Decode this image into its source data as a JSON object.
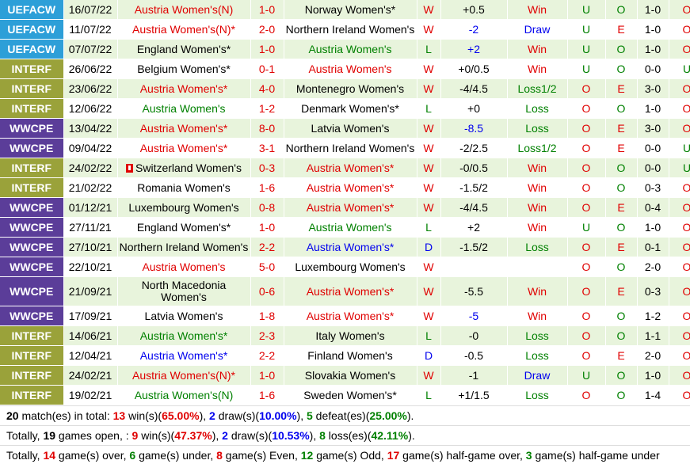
{
  "colors": {
    "uefacw": "#2d9fd8",
    "interf": "#9aa23a",
    "wwcpe": "#5b3d99",
    "row_even": "#e8f4dc",
    "row_odd": "#ffffff"
  },
  "matches": [
    {
      "league": "UEFACW",
      "date": "16/07/22",
      "home": "Austria Women's(N)",
      "home_color": "red",
      "score": "1-0",
      "away": "Norway Women's*",
      "away_color": "dark",
      "wl": "W",
      "handicap": "+0.5",
      "hc_color": "dark",
      "hres": "Win",
      "hres_color": "red",
      "ou": "U",
      "ou_color": "green",
      "oe": "O",
      "oe_color": "green",
      "ht": "1-0",
      "hou": "O",
      "hou_color": "red"
    },
    {
      "league": "UEFACW",
      "date": "11/07/22",
      "home": "Austria Women's(N)*",
      "home_color": "red",
      "score": "2-0",
      "away": "Northern Ireland Women's",
      "away_color": "dark",
      "wl": "W",
      "handicap": "-2",
      "hc_color": "blue",
      "hres": "Draw",
      "hres_color": "blue",
      "ou": "U",
      "ou_color": "green",
      "oe": "E",
      "oe_color": "red",
      "ht": "1-0",
      "hou": "O",
      "hou_color": "red"
    },
    {
      "league": "UEFACW",
      "date": "07/07/22",
      "home": "England Women's*",
      "home_color": "dark",
      "score": "1-0",
      "away": "Austria Women's",
      "away_color": "green",
      "wl": "L",
      "handicap": "+2",
      "hc_color": "blue",
      "hres": "Win",
      "hres_color": "red",
      "ou": "U",
      "ou_color": "green",
      "oe": "O",
      "oe_color": "green",
      "ht": "1-0",
      "hou": "O",
      "hou_color": "red"
    },
    {
      "league": "INTERF",
      "date": "26/06/22",
      "home": "Belgium Women's*",
      "home_color": "dark",
      "score": "0-1",
      "away": "Austria Women's",
      "away_color": "red",
      "wl": "W",
      "handicap": "+0/0.5",
      "hc_color": "dark",
      "hres": "Win",
      "hres_color": "red",
      "ou": "U",
      "ou_color": "green",
      "oe": "O",
      "oe_color": "green",
      "ht": "0-0",
      "hou": "U",
      "hou_color": "green"
    },
    {
      "league": "INTERF",
      "date": "23/06/22",
      "home": "Austria Women's*",
      "home_color": "red",
      "score": "4-0",
      "away": "Montenegro Women's",
      "away_color": "dark",
      "wl": "W",
      "handicap": "-4/4.5",
      "hc_color": "dark",
      "hres": "Loss1/2",
      "hres_color": "green",
      "ou": "O",
      "ou_color": "red",
      "oe": "E",
      "oe_color": "red",
      "ht": "3-0",
      "hou": "O",
      "hou_color": "red"
    },
    {
      "league": "INTERF",
      "date": "12/06/22",
      "home": "Austria Women's",
      "home_color": "green",
      "score": "1-2",
      "away": "Denmark Women's*",
      "away_color": "dark",
      "wl": "L",
      "handicap": "+0",
      "hc_color": "dark",
      "hres": "Loss",
      "hres_color": "green",
      "ou": "O",
      "ou_color": "red",
      "oe": "O",
      "oe_color": "green",
      "ht": "1-0",
      "hou": "O",
      "hou_color": "red"
    },
    {
      "league": "WWCPE",
      "date": "13/04/22",
      "home": "Austria Women's*",
      "home_color": "red",
      "score": "8-0",
      "away": "Latvia Women's",
      "away_color": "dark",
      "wl": "W",
      "handicap": "-8.5",
      "hc_color": "blue",
      "hres": "Loss",
      "hres_color": "green",
      "ou": "O",
      "ou_color": "red",
      "oe": "E",
      "oe_color": "red",
      "ht": "3-0",
      "hou": "O",
      "hou_color": "red"
    },
    {
      "league": "WWCPE",
      "date": "09/04/22",
      "home": "Austria Women's*",
      "home_color": "red",
      "score": "3-1",
      "away": "Northern Ireland Women's",
      "away_color": "dark",
      "wl": "W",
      "handicap": "-2/2.5",
      "hc_color": "dark",
      "hres": "Loss1/2",
      "hres_color": "green",
      "ou": "O",
      "ou_color": "red",
      "oe": "E",
      "oe_color": "red",
      "ht": "0-0",
      "hou": "U",
      "hou_color": "green"
    },
    {
      "league": "INTERF",
      "date": "24/02/22",
      "home": "Switzerland Women's",
      "home_color": "dark",
      "home_flag": true,
      "score": "0-3",
      "away": "Austria Women's*",
      "away_color": "red",
      "wl": "W",
      "handicap": "-0/0.5",
      "hc_color": "dark",
      "hres": "Win",
      "hres_color": "red",
      "ou": "O",
      "ou_color": "red",
      "oe": "O",
      "oe_color": "green",
      "ht": "0-0",
      "hou": "U",
      "hou_color": "green"
    },
    {
      "league": "INTERF",
      "date": "21/02/22",
      "home": "Romania Women's",
      "home_color": "dark",
      "score": "1-6",
      "away": "Austria Women's*",
      "away_color": "red",
      "wl": "W",
      "handicap": "-1.5/2",
      "hc_color": "dark",
      "hres": "Win",
      "hres_color": "red",
      "ou": "O",
      "ou_color": "red",
      "oe": "O",
      "oe_color": "green",
      "ht": "0-3",
      "hou": "O",
      "hou_color": "red"
    },
    {
      "league": "WWCPE",
      "date": "01/12/21",
      "home": "Luxembourg Women's",
      "home_color": "dark",
      "score": "0-8",
      "away": "Austria Women's*",
      "away_color": "red",
      "wl": "W",
      "handicap": "-4/4.5",
      "hc_color": "dark",
      "hres": "Win",
      "hres_color": "red",
      "ou": "O",
      "ou_color": "red",
      "oe": "E",
      "oe_color": "red",
      "ht": "0-4",
      "hou": "O",
      "hou_color": "red"
    },
    {
      "league": "WWCPE",
      "date": "27/11/21",
      "home": "England Women's*",
      "home_color": "dark",
      "score": "1-0",
      "away": "Austria Women's",
      "away_color": "green",
      "wl": "L",
      "handicap": "+2",
      "hc_color": "dark",
      "hres": "Win",
      "hres_color": "red",
      "ou": "U",
      "ou_color": "green",
      "oe": "O",
      "oe_color": "green",
      "ht": "1-0",
      "hou": "O",
      "hou_color": "red"
    },
    {
      "league": "WWCPE",
      "date": "27/10/21",
      "home": "Northern Ireland Women's",
      "home_color": "dark",
      "score": "2-2",
      "away": "Austria Women's*",
      "away_color": "blue",
      "wl": "D",
      "handicap": "-1.5/2",
      "hc_color": "dark",
      "hres": "Loss",
      "hres_color": "green",
      "ou": "O",
      "ou_color": "red",
      "oe": "E",
      "oe_color": "red",
      "ht": "0-1",
      "hou": "O",
      "hou_color": "red"
    },
    {
      "league": "WWCPE",
      "date": "22/10/21",
      "home": "Austria Women's",
      "home_color": "red",
      "score": "5-0",
      "away": "Luxembourg Women's",
      "away_color": "dark",
      "wl": "W",
      "handicap": "",
      "hc_color": "dark",
      "hres": "",
      "hres_color": "dark",
      "ou": "O",
      "ou_color": "red",
      "oe": "O",
      "oe_color": "green",
      "ht": "2-0",
      "hou": "O",
      "hou_color": "red"
    },
    {
      "league": "WWCPE",
      "date": "21/09/21",
      "home": "North Macedonia Women's",
      "home_color": "dark",
      "tall": true,
      "score": "0-6",
      "away": "Austria Women's*",
      "away_color": "red",
      "wl": "W",
      "handicap": "-5.5",
      "hc_color": "dark",
      "hres": "Win",
      "hres_color": "red",
      "ou": "O",
      "ou_color": "red",
      "oe": "E",
      "oe_color": "red",
      "ht": "0-3",
      "hou": "O",
      "hou_color": "red"
    },
    {
      "league": "WWCPE",
      "date": "17/09/21",
      "home": "Latvia Women's",
      "home_color": "dark",
      "score": "1-8",
      "away": "Austria Women's*",
      "away_color": "red",
      "wl": "W",
      "handicap": "-5",
      "hc_color": "blue",
      "hres": "Win",
      "hres_color": "red",
      "ou": "O",
      "ou_color": "red",
      "oe": "O",
      "oe_color": "green",
      "ht": "1-2",
      "hou": "O",
      "hou_color": "red"
    },
    {
      "league": "INTERF",
      "date": "14/06/21",
      "home": "Austria Women's*",
      "home_color": "green",
      "score": "2-3",
      "away": "Italy Women's",
      "away_color": "dark",
      "wl": "L",
      "handicap": "-0",
      "hc_color": "dark",
      "hres": "Loss",
      "hres_color": "green",
      "ou": "O",
      "ou_color": "red",
      "oe": "O",
      "oe_color": "green",
      "ht": "1-1",
      "hou": "O",
      "hou_color": "red"
    },
    {
      "league": "INTERF",
      "date": "12/04/21",
      "home": "Austria Women's*",
      "home_color": "blue",
      "score": "2-2",
      "away": "Finland Women's",
      "away_color": "dark",
      "wl": "D",
      "handicap": "-0.5",
      "hc_color": "dark",
      "hres": "Loss",
      "hres_color": "green",
      "ou": "O",
      "ou_color": "red",
      "oe": "E",
      "oe_color": "red",
      "ht": "2-0",
      "hou": "O",
      "hou_color": "red"
    },
    {
      "league": "INTERF",
      "date": "24/02/21",
      "home": "Austria Women's(N)*",
      "home_color": "red",
      "score": "1-0",
      "away": "Slovakia Women's",
      "away_color": "dark",
      "wl": "W",
      "handicap": "-1",
      "hc_color": "dark",
      "hres": "Draw",
      "hres_color": "blue",
      "ou": "U",
      "ou_color": "green",
      "oe": "O",
      "oe_color": "green",
      "ht": "1-0",
      "hou": "O",
      "hou_color": "red"
    },
    {
      "league": "INTERF",
      "date": "19/02/21",
      "home": "Austria Women's(N)",
      "home_color": "green",
      "score": "1-6",
      "away": "Sweden Women's*",
      "away_color": "dark",
      "wl": "L",
      "handicap": "+1/1.5",
      "hc_color": "dark",
      "hres": "Loss",
      "hres_color": "green",
      "ou": "O",
      "ou_color": "red",
      "oe": "O",
      "oe_color": "green",
      "ht": "1-4",
      "hou": "O",
      "hou_color": "red"
    }
  ],
  "summary": {
    "line1": {
      "count": "20",
      "t1": " match(es) in total: ",
      "wins": "13",
      "t2": " win(s)(",
      "win_pct": "65.00%",
      "t3": "), ",
      "draws": "2",
      "t4": " draw(s)(",
      "draw_pct": "10.00%",
      "t5": "), ",
      "defeats": "5",
      "t6": " defeat(es)(",
      "defeat_pct": "25.00%",
      "t7": ")."
    },
    "line2": {
      "t0": "Totally, ",
      "open": "19",
      "t1": " games open, : ",
      "wins": "9",
      "t2": " win(s)(",
      "win_pct": "47.37%",
      "t3": "), ",
      "draws": "2",
      "t4": " draw(s)(",
      "draw_pct": "10.53%",
      "t5": "), ",
      "loss": "8",
      "t6": " loss(es)(",
      "loss_pct": "42.11%",
      "t7": ")."
    },
    "line3": {
      "t0": "Totally, ",
      "over": "14",
      "t1": " game(s) over, ",
      "under": "6",
      "t2": " game(s) under, ",
      "even": "8",
      "t3": " game(s) Even, ",
      "odd": "12",
      "t4": " game(s) Odd, ",
      "hover": "17",
      "t5": " game(s) half-game over, ",
      "hunder": "3",
      "t6": " game(s) half-game under"
    }
  }
}
